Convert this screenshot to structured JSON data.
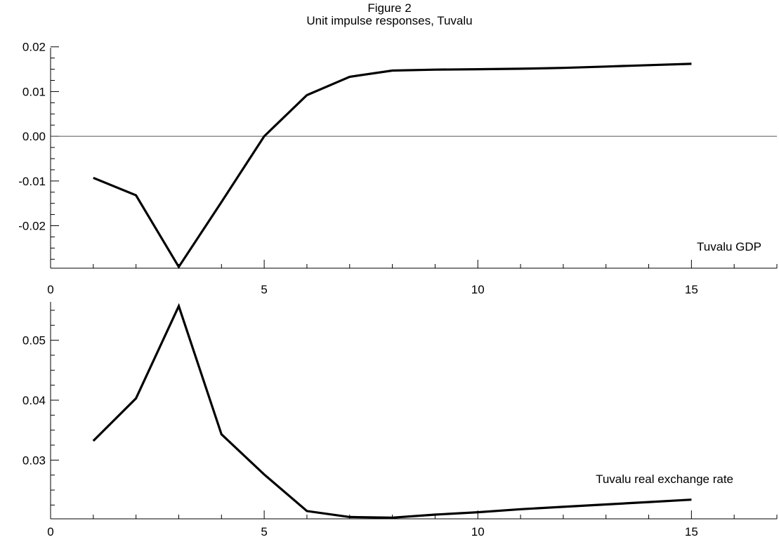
{
  "figure": {
    "title": "Figure 2",
    "subtitle": "Unit impulse responses, Tuvalu"
  },
  "colors": {
    "line": "#000000",
    "axis": "#000000",
    "zero_line": "#555555"
  },
  "chart_data": [
    {
      "type": "line",
      "label": "Tuvalu GDP",
      "x": [
        1,
        2,
        3,
        4,
        5,
        6,
        7,
        8,
        9,
        10,
        11,
        12,
        13,
        14,
        15
      ],
      "series": [
        {
          "name": "Tuvalu GDP",
          "values": [
            -0.0093,
            -0.0132,
            -0.0292,
            -0.0147,
            0.0,
            0.0092,
            0.0133,
            0.0147,
            0.0149,
            0.015,
            0.0151,
            0.0153,
            0.0156,
            0.0159,
            0.0162
          ]
        }
      ],
      "xlim": [
        0,
        17
      ],
      "ylim": [
        -0.0295,
        0.0198
      ],
      "x_ticks": [
        0,
        5,
        10,
        15
      ],
      "y_ticks": [
        -0.02,
        -0.01,
        0.0,
        0.01,
        0.02
      ],
      "y_tick_labels": [
        "-0.02",
        "-0.01",
        "0.00",
        "0.01",
        "0.02"
      ],
      "zero_line": true,
      "grid": false
    },
    {
      "type": "line",
      "label": "Tuvalu real exchange rate",
      "x": [
        1,
        2,
        3,
        4,
        5,
        6,
        7,
        8,
        9,
        10,
        11,
        12,
        13,
        14,
        15
      ],
      "series": [
        {
          "name": "Tuvalu real exchange rate",
          "values": [
            0.0332,
            0.0403,
            0.0557,
            0.0343,
            0.0276,
            0.0215,
            0.0205,
            0.0204,
            0.0209,
            0.0213,
            0.0218,
            0.0222,
            0.0226,
            0.023,
            0.0234
          ]
        }
      ],
      "xlim": [
        0,
        17
      ],
      "ylim": [
        0.0202,
        0.0564
      ],
      "x_ticks": [
        0,
        5,
        10,
        15
      ],
      "y_ticks": [
        0.03,
        0.04,
        0.05
      ],
      "y_tick_labels": [
        "0.03",
        "0.04",
        "0.05"
      ],
      "zero_line": false,
      "grid": false
    }
  ]
}
